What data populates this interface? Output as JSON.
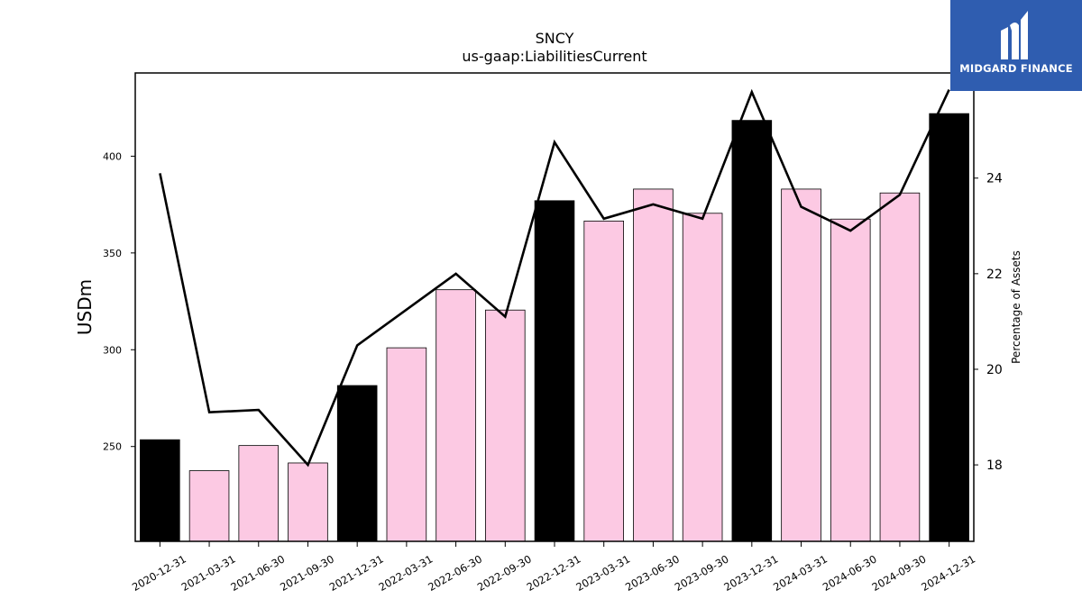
{
  "chart_data": {
    "type": "bar",
    "title": "SNCY",
    "subtitle": "us-gaap:LiabilitiesCurrent",
    "ylabel": "USDm",
    "y2label": "Percentage of Assets",
    "ylim": [
      201,
      443
    ],
    "y2lim": [
      16.4,
      26.2
    ],
    "yticks": [
      250,
      300,
      350,
      400
    ],
    "y2ticks": [
      18,
      20,
      22,
      24,
      26
    ],
    "categories": [
      "2020-12-31",
      "2021-03-31",
      "2021-06-30",
      "2021-09-30",
      "2021-12-31",
      "2022-03-31",
      "2022-06-30",
      "2022-09-30",
      "2022-12-31",
      "2023-03-31",
      "2023-06-30",
      "2023-09-30",
      "2023-12-31",
      "2024-03-31",
      "2024-06-30",
      "2024-09-30",
      "2024-12-31"
    ],
    "series": [
      {
        "kind": "bar",
        "axis": "left",
        "values": [
          253.5,
          237.5,
          250.5,
          241.5,
          281.5,
          301,
          331,
          320.5,
          377,
          366.5,
          383,
          370.5,
          418.5,
          383,
          367.5,
          381,
          422
        ],
        "colors": [
          "#000000",
          "#fcc9e3",
          "#fcc9e3",
          "#fcc9e3",
          "#000000",
          "#fcc9e3",
          "#fcc9e3",
          "#fcc9e3",
          "#000000",
          "#fcc9e3",
          "#fcc9e3",
          "#fcc9e3",
          "#000000",
          "#fcc9e3",
          "#fcc9e3",
          "#fcc9e3",
          "#000000"
        ]
      },
      {
        "kind": "line",
        "axis": "right",
        "color": "#000000",
        "values": [
          24.1,
          19.1,
          19.15,
          18.0,
          20.5,
          21.25,
          22.0,
          21.1,
          24.75,
          23.15,
          23.45,
          23.15,
          25.8,
          23.4,
          22.9,
          23.65,
          25.85
        ]
      }
    ]
  },
  "logo": {
    "text": "MIDGARD FINANCE",
    "background": "#2f5db0"
  }
}
